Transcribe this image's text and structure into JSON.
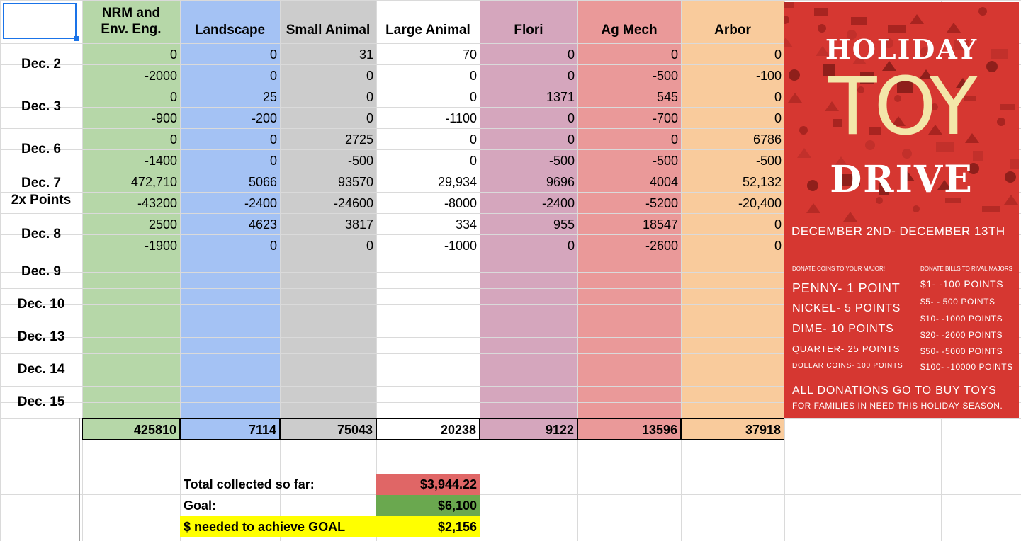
{
  "columns": [
    {
      "id": "nrm",
      "header": "NRM and\nEnv. Eng.",
      "color": "#b6d7a8"
    },
    {
      "id": "landscape",
      "header": "Landscape",
      "color": "#a4c2f4"
    },
    {
      "id": "small",
      "header": "Small Animal",
      "color": "#cccccc"
    },
    {
      "id": "large",
      "header": "Large Animal",
      "color": "#ffffff"
    },
    {
      "id": "flori",
      "header": "Flori",
      "color": "#d5a6bd"
    },
    {
      "id": "agmech",
      "header": "Ag Mech",
      "color": "#ea9999"
    },
    {
      "id": "arbor",
      "header": "Arbor",
      "color": "#f9cb9c"
    }
  ],
  "row_labels": [
    {
      "text": "Dec. 2"
    },
    {
      "text": "Dec. 3"
    },
    {
      "text": "Dec. 6"
    },
    {
      "text": "Dec. 7\n2x Points"
    },
    {
      "text": "Dec. 8"
    },
    {
      "text": "Dec. 9"
    },
    {
      "text": "Dec. 10"
    },
    {
      "text": "Dec. 13"
    },
    {
      "text": "Dec. 14"
    },
    {
      "text": "Dec. 15"
    }
  ],
  "data_rows": [
    [
      "0",
      "0",
      "31",
      "70",
      "0",
      "0",
      "0"
    ],
    [
      "-2000",
      "0",
      "0",
      "0",
      "0",
      "-500",
      "-100"
    ],
    [
      "0",
      "25",
      "0",
      "0",
      "1371",
      "545",
      "0"
    ],
    [
      "-900",
      "-200",
      "0",
      "-1100",
      "0",
      "-700",
      "0"
    ],
    [
      "0",
      "0",
      "2725",
      "0",
      "0",
      "0",
      "6786"
    ],
    [
      "-1400",
      "0",
      "-500",
      "0",
      "-500",
      "-500",
      "-500"
    ],
    [
      "472,710",
      "5066",
      "93570",
      "29,934",
      "9696",
      "4004",
      "52,132"
    ],
    [
      "-43200",
      "-2400",
      "-24600",
      "-8000",
      "-2400",
      "-5200",
      "-20,400"
    ],
    [
      "2500",
      "4623",
      "3817",
      "334",
      "955",
      "18547",
      "0"
    ],
    [
      "-1900",
      "0",
      "0",
      "-1000",
      "0",
      "-2600",
      "0"
    ]
  ],
  "totals": [
    "425810",
    "7114",
    "75043",
    "20238",
    "9122",
    "13596",
    "37918"
  ],
  "summary": [
    {
      "label": "Total collected so far:",
      "value": "$3,944.22",
      "color": "#e06666"
    },
    {
      "label": "Goal:",
      "value": "$6,100",
      "color": "#6aa84f"
    },
    {
      "label": "$ needed to achieve GOAL",
      "value": "$2,156",
      "color": "#ffff00"
    }
  ],
  "poster": {
    "title1": "HOLIDAY",
    "title2": "TOY",
    "title3": "DRIVE",
    "dates": "DECEMBER 2ND- DECEMBER 13TH",
    "coins_header": "DONATE COINS TO YOUR MAJOR!",
    "bills_header": "DONATE BILLS TO RIVAL MAJORS",
    "coins": [
      "PENNY- 1 POINT",
      "NICKEL- 5 POINTS",
      "DIME- 10 POINTS",
      "QUARTER- 25 POINTS",
      "DOLLAR COINS- 100 POINTS"
    ],
    "bills": [
      "$1- -100 POINTS",
      "$5- - 500 POINTS",
      "$10- -1000 POINTS",
      "$20- -2000 POINTS",
      "$50- -5000 POINTS",
      "$100- -10000 POINTS"
    ],
    "footer1": "ALL DONATIONS GO TO BUY TOYS",
    "footer2": "FOR FAMILIES IN NEED THIS HOLIDAY SEASON.",
    "bg_color": "#d63731",
    "toy_color": "#f3e6a9"
  }
}
